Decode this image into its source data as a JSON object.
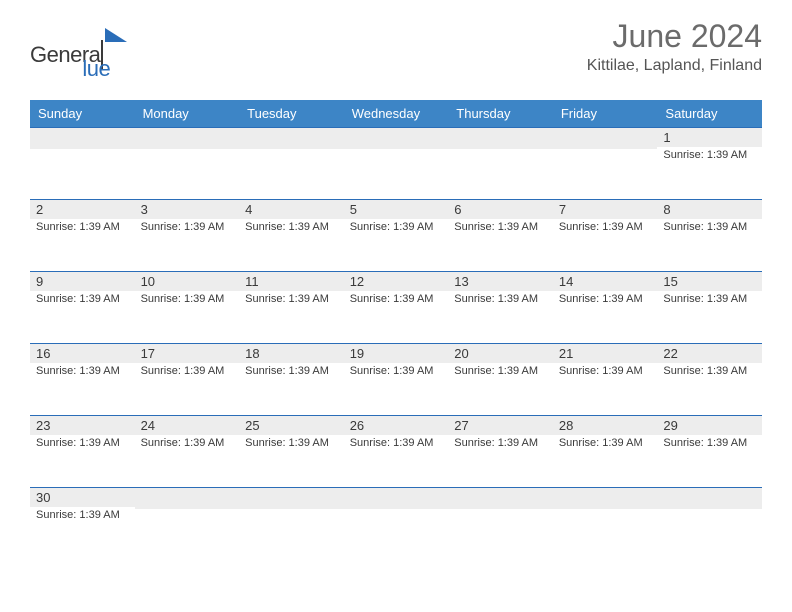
{
  "brand": {
    "name_left": "Genera",
    "name_right": "lue",
    "color_dark": "#3a3a3a",
    "color_blue": "#2a6db8"
  },
  "header": {
    "title": "June 2024",
    "subtitle": "Kittilae, Lapland, Finland",
    "title_color": "#6b6b6b",
    "title_fontsize": 32,
    "subtitle_fontsize": 16
  },
  "calendar": {
    "header_bg": "#3d85c6",
    "header_text_color": "#ffffff",
    "border_color": "#2a6db8",
    "band_bg": "#ededed",
    "day_names": [
      "Sunday",
      "Monday",
      "Tuesday",
      "Wednesday",
      "Thursday",
      "Friday",
      "Saturday"
    ],
    "weeks": [
      [
        {
          "num": "",
          "info": ""
        },
        {
          "num": "",
          "info": ""
        },
        {
          "num": "",
          "info": ""
        },
        {
          "num": "",
          "info": ""
        },
        {
          "num": "",
          "info": ""
        },
        {
          "num": "",
          "info": ""
        },
        {
          "num": "1",
          "info": "Sunrise: 1:39 AM"
        }
      ],
      [
        {
          "num": "2",
          "info": "Sunrise: 1:39 AM"
        },
        {
          "num": "3",
          "info": "Sunrise: 1:39 AM"
        },
        {
          "num": "4",
          "info": "Sunrise: 1:39 AM"
        },
        {
          "num": "5",
          "info": "Sunrise: 1:39 AM"
        },
        {
          "num": "6",
          "info": "Sunrise: 1:39 AM"
        },
        {
          "num": "7",
          "info": "Sunrise: 1:39 AM"
        },
        {
          "num": "8",
          "info": "Sunrise: 1:39 AM"
        }
      ],
      [
        {
          "num": "9",
          "info": "Sunrise: 1:39 AM"
        },
        {
          "num": "10",
          "info": "Sunrise: 1:39 AM"
        },
        {
          "num": "11",
          "info": "Sunrise: 1:39 AM"
        },
        {
          "num": "12",
          "info": "Sunrise: 1:39 AM"
        },
        {
          "num": "13",
          "info": "Sunrise: 1:39 AM"
        },
        {
          "num": "14",
          "info": "Sunrise: 1:39 AM"
        },
        {
          "num": "15",
          "info": "Sunrise: 1:39 AM"
        }
      ],
      [
        {
          "num": "16",
          "info": "Sunrise: 1:39 AM"
        },
        {
          "num": "17",
          "info": "Sunrise: 1:39 AM"
        },
        {
          "num": "18",
          "info": "Sunrise: 1:39 AM"
        },
        {
          "num": "19",
          "info": "Sunrise: 1:39 AM"
        },
        {
          "num": "20",
          "info": "Sunrise: 1:39 AM"
        },
        {
          "num": "21",
          "info": "Sunrise: 1:39 AM"
        },
        {
          "num": "22",
          "info": "Sunrise: 1:39 AM"
        }
      ],
      [
        {
          "num": "23",
          "info": "Sunrise: 1:39 AM"
        },
        {
          "num": "24",
          "info": "Sunrise: 1:39 AM"
        },
        {
          "num": "25",
          "info": "Sunrise: 1:39 AM"
        },
        {
          "num": "26",
          "info": "Sunrise: 1:39 AM"
        },
        {
          "num": "27",
          "info": "Sunrise: 1:39 AM"
        },
        {
          "num": "28",
          "info": "Sunrise: 1:39 AM"
        },
        {
          "num": "29",
          "info": "Sunrise: 1:39 AM"
        }
      ],
      [
        {
          "num": "30",
          "info": "Sunrise: 1:39 AM"
        },
        {
          "num": "",
          "info": ""
        },
        {
          "num": "",
          "info": ""
        },
        {
          "num": "",
          "info": ""
        },
        {
          "num": "",
          "info": ""
        },
        {
          "num": "",
          "info": ""
        },
        {
          "num": "",
          "info": ""
        }
      ]
    ]
  }
}
